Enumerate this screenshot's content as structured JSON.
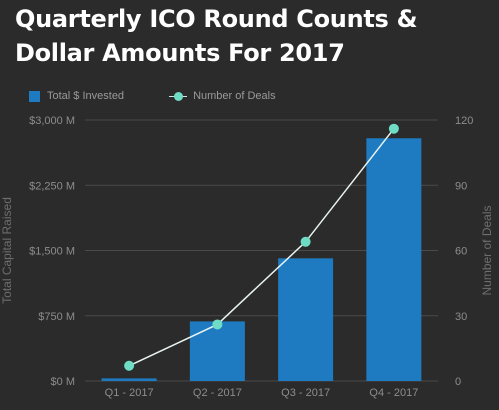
{
  "chart_data": {
    "type": "bar",
    "title": "Quarterly ICO Round Counts & Dollar Amounts For 2017",
    "categories": [
      "Q1 - 2017",
      "Q2 - 2017",
      "Q3 - 2017",
      "Q4 - 2017"
    ],
    "series": [
      {
        "name": "Total $ Invested",
        "type": "bar",
        "axis": "left",
        "values": [
          30,
          685,
          1410,
          2790
        ],
        "color": "#1f7bc1"
      },
      {
        "name": "Number of Deals",
        "type": "line",
        "axis": "right",
        "values": [
          7,
          26,
          64,
          116
        ],
        "color": "#6fdcc6"
      }
    ],
    "y_left": {
      "label": "Total Capital Raised",
      "ylim": [
        0,
        3000
      ],
      "ticks": [
        0,
        750,
        1500,
        2250,
        3000
      ],
      "tick_labels": [
        "$0 M",
        "$750 M",
        "$1,500 M",
        "$2,250 M",
        "$3,000 M"
      ]
    },
    "y_right": {
      "label": "Number of Deals",
      "ylim": [
        0,
        120
      ],
      "ticks": [
        0,
        30,
        60,
        90,
        120
      ],
      "tick_labels": [
        "0",
        "30",
        "60",
        "90",
        "120"
      ]
    },
    "grid": true,
    "legend_position": "top-left"
  }
}
